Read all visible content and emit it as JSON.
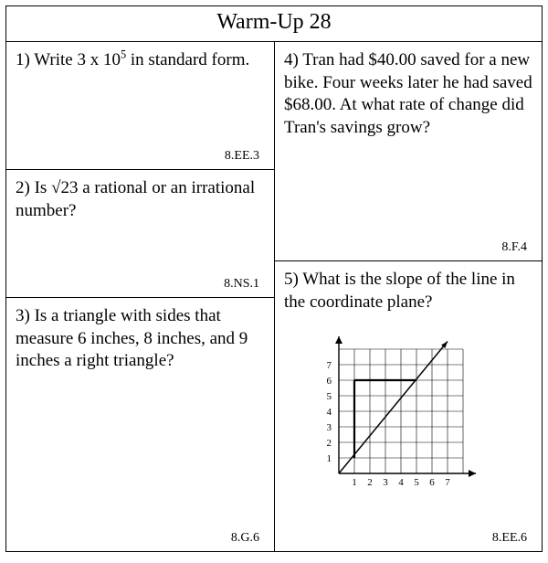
{
  "title": "Warm-Up 28",
  "q1": {
    "prefix": "1)  Write 3 x 10",
    "exp": "5",
    "suffix": " in standard form.",
    "standard": "8.EE.3"
  },
  "q2": {
    "prefix": "2)  Is ",
    "radical": "√23",
    "suffix": " a rational or an irrational number?",
    "standard": "8.NS.1"
  },
  "q3": {
    "text": "3)  Is a triangle with sides that measure 6 inches, 8 inches, and 9 inches a right triangle?",
    "standard": "8.G.6"
  },
  "q4": {
    "text": "4)  Tran had $40.00 saved for a new bike.  Four weeks later he had saved $68.00.  At what rate of change did Tran's savings grow?",
    "standard": "8.F.4"
  },
  "q5": {
    "text": "5)  What is the slope of the line in the coordinate plane?",
    "standard": "8.EE.6",
    "chart": {
      "type": "line-on-grid",
      "xlim": [
        0,
        8
      ],
      "ylim": [
        0,
        8
      ],
      "grid_cells": 8,
      "x_ticks": [
        1,
        2,
        3,
        4,
        5,
        6,
        7
      ],
      "y_ticks": [
        1,
        2,
        3,
        4,
        5,
        6,
        7
      ],
      "tick_fontsize": 11,
      "grid_color": "#000000",
      "axis_color": "#000000",
      "line_color": "#000000",
      "line_width": 1.5,
      "line_points": [
        [
          0,
          0
        ],
        [
          7,
          8.5
        ]
      ],
      "bold_segments": [
        [
          [
            1,
            1
          ],
          [
            1,
            6
          ]
        ],
        [
          [
            1,
            6
          ],
          [
            5,
            6
          ]
        ]
      ],
      "bold_width": 2.2,
      "background_color": "#ffffff"
    }
  },
  "colors": {
    "text": "#000000",
    "background": "#ffffff",
    "border": "#000000"
  }
}
